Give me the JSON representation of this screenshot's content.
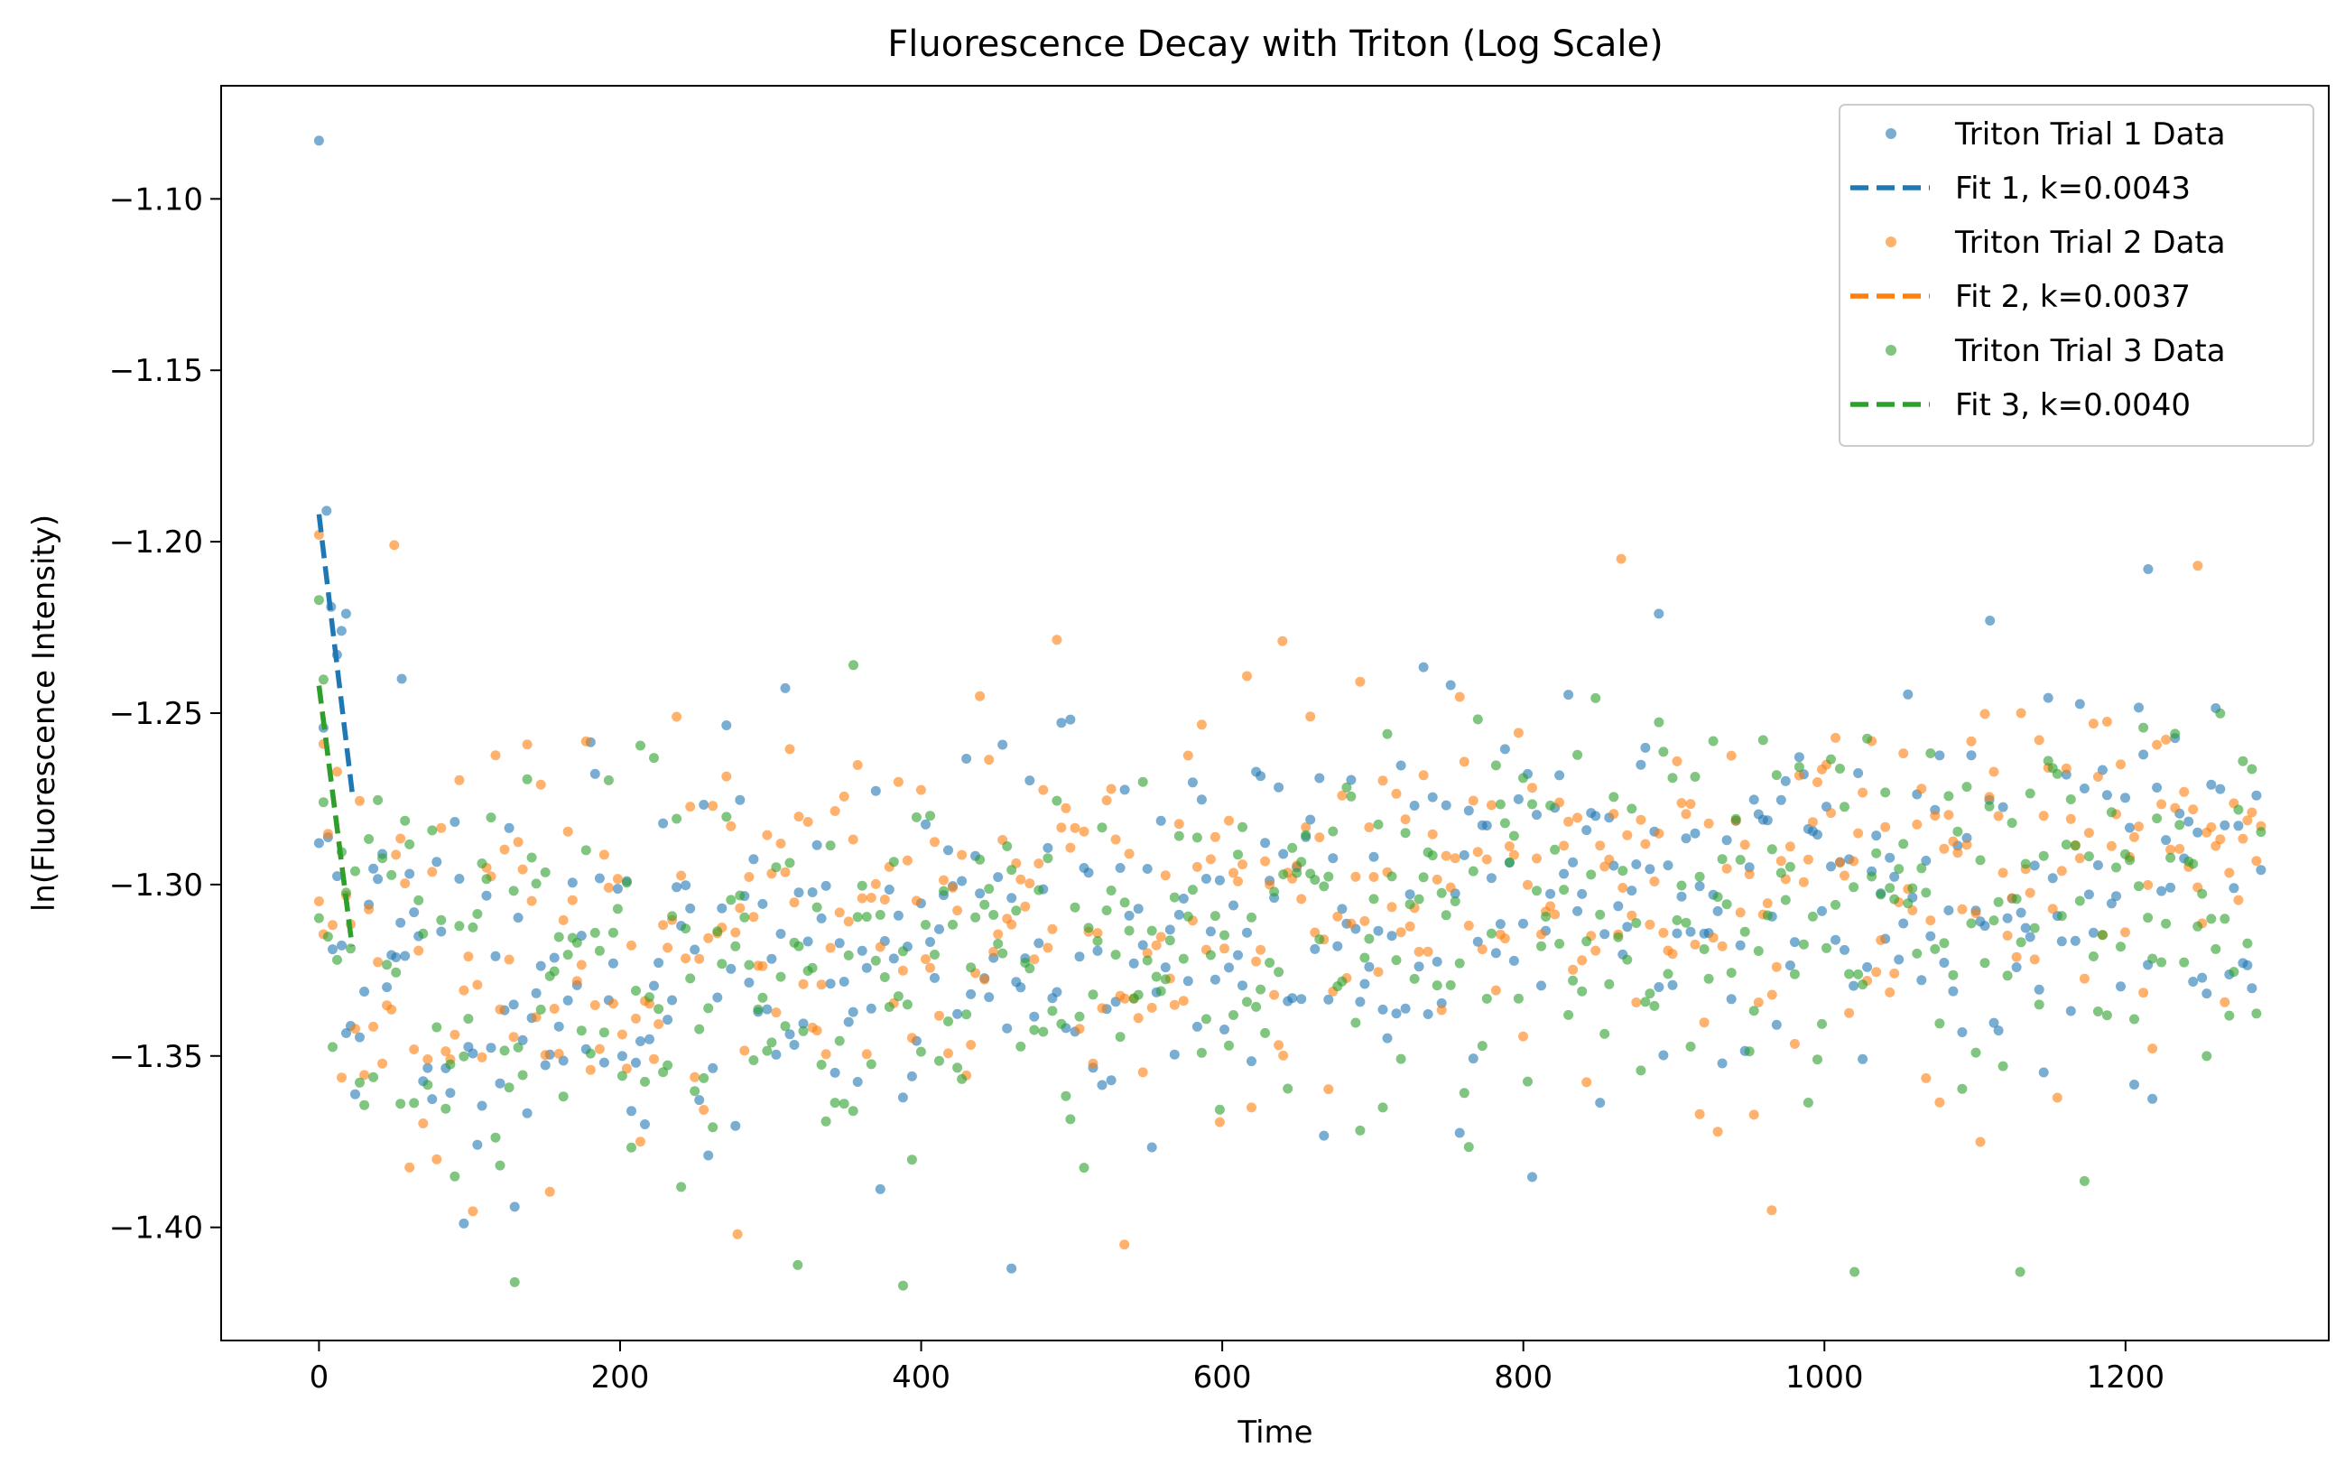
{
  "chart_data": {
    "type": "scatter",
    "title": "Fluorescence Decay with Triton (Log Scale)",
    "xlabel": "Time",
    "ylabel": "ln(Fluorescence Intensity)",
    "xlim": [
      -65,
      1335
    ],
    "ylim": [
      -1.433,
      -1.067
    ],
    "x_ticks": [
      0,
      200,
      400,
      600,
      800,
      1000,
      1200
    ],
    "x_tick_labels": [
      "0",
      "200",
      "400",
      "600",
      "800",
      "1000",
      "1200"
    ],
    "y_ticks": [
      -1.1,
      -1.15,
      -1.2,
      -1.25,
      -1.3,
      -1.35,
      -1.4
    ],
    "y_tick_labels": [
      "−1.10",
      "−1.15",
      "−1.20",
      "−1.25",
      "−1.30",
      "−1.35",
      "−1.40"
    ],
    "grid": false,
    "legend_position": "top-right",
    "series": [
      {
        "name": "Triton Trial 1 Data",
        "kind": "scatter",
        "color": "#1f77b4",
        "seed": 11,
        "x_start": 0,
        "x_end": 1290,
        "n": 430,
        "trend_start": -1.33,
        "trend_end": -1.29,
        "spread": 0.038,
        "anchors": [
          [
            0,
            -1.083
          ],
          [
            5,
            -1.191
          ],
          [
            8,
            -1.219
          ],
          [
            12,
            -1.233
          ],
          [
            15,
            -1.226
          ],
          [
            18,
            -1.221
          ],
          [
            55,
            -1.24
          ],
          [
            130,
            -1.394
          ],
          [
            460,
            -1.412
          ],
          [
            1110,
            -1.223
          ],
          [
            1215,
            -1.208
          ],
          [
            890,
            -1.221
          ]
        ]
      },
      {
        "name": "Fit 1, k=0.0043",
        "kind": "line",
        "color": "#1f77b4",
        "x": [
          0,
          22
        ],
        "y": [
          -1.192,
          -1.273
        ]
      },
      {
        "name": "Triton Trial 2 Data",
        "kind": "scatter",
        "color": "#ff7f0e",
        "seed": 23,
        "x_start": 0,
        "x_end": 1290,
        "n": 430,
        "trend_start": -1.325,
        "trend_end": -1.29,
        "spread": 0.036,
        "anchors": [
          [
            0,
            -1.198
          ],
          [
            3,
            -1.259
          ],
          [
            50,
            -1.201
          ],
          [
            535,
            -1.405
          ],
          [
            865,
            -1.205
          ],
          [
            1248,
            -1.207
          ],
          [
            965,
            -1.395
          ],
          [
            278,
            -1.402
          ],
          [
            640,
            -1.229
          ]
        ]
      },
      {
        "name": "Fit 2, k=0.0037",
        "kind": "line",
        "color": "#ff7f0e",
        "x": [
          0,
          20
        ],
        "y": [
          -1.242,
          -1.311
        ]
      },
      {
        "name": "Triton Trial 3 Data",
        "kind": "scatter",
        "color": "#2ca02c",
        "seed": 37,
        "x_start": 0,
        "x_end": 1290,
        "n": 430,
        "trend_start": -1.33,
        "trend_end": -1.3,
        "spread": 0.036,
        "anchors": [
          [
            0,
            -1.217
          ],
          [
            3,
            -1.276
          ],
          [
            130,
            -1.416
          ],
          [
            388,
            -1.417
          ],
          [
            1020,
            -1.413
          ],
          [
            1130,
            -1.413
          ],
          [
            355,
            -1.236
          ],
          [
            318,
            -1.411
          ]
        ]
      },
      {
        "name": "Fit 3, k=0.0040",
        "kind": "line",
        "color": "#2ca02c",
        "x": [
          0,
          22
        ],
        "y": [
          -1.242,
          -1.318
        ]
      }
    ]
  }
}
